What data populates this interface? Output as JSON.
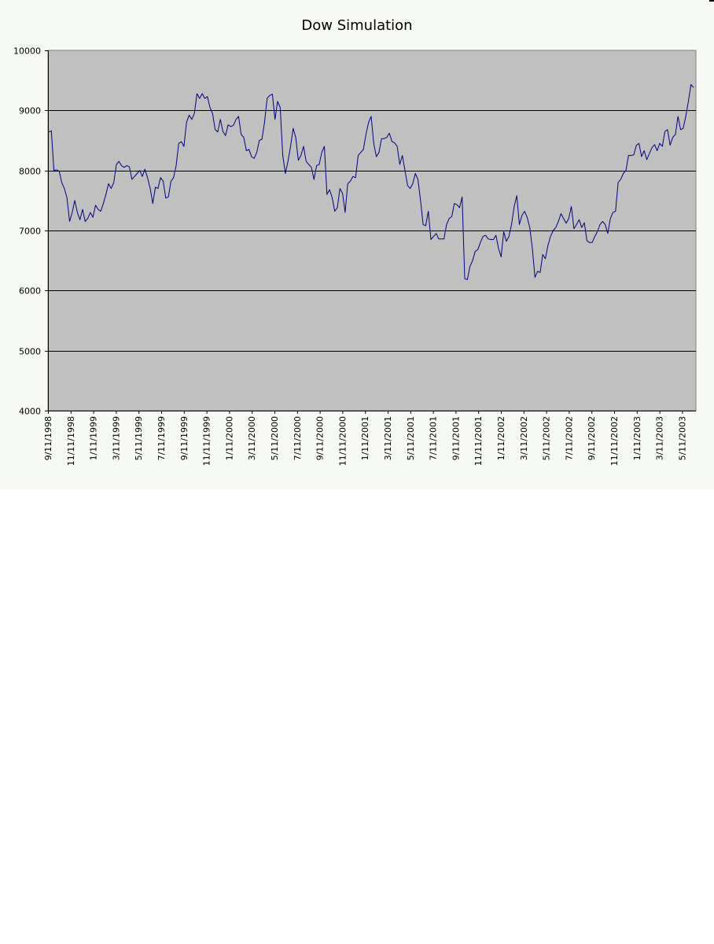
{
  "chart_data": {
    "type": "line",
    "title": "Dow Simulation",
    "xlabel": "",
    "ylabel": "",
    "ylim": [
      4000,
      10000
    ],
    "yticks": [
      "4000",
      "5000",
      "6000",
      "7000",
      "8000",
      "9000",
      "10000"
    ],
    "xticks": [
      "9/11/1998",
      "11/11/1998",
      "1/11/1999",
      "3/11/1999",
      "5/11/1999",
      "7/11/1999",
      "9/11/1999",
      "11/11/1999",
      "1/11/2000",
      "3/11/2000",
      "5/11/2000",
      "7/11/2000",
      "9/11/2000",
      "11/11/2000",
      "1/11/2001",
      "3/11/2001",
      "5/11/2001",
      "7/11/2001",
      "9/11/2001",
      "11/11/2001",
      "1/11/2002",
      "3/11/2002",
      "5/11/2002",
      "7/11/2002",
      "9/11/2002",
      "11/11/2002",
      "1/11/2003",
      "3/11/2003",
      "5/11/2003"
    ],
    "grid": true,
    "legend": "none",
    "colors": {
      "line": "#000080",
      "plot_background": "#c0c0c0",
      "chart_background": "#f6f9f4",
      "gridline": "#000000"
    },
    "series": [
      {
        "values": [
          8640,
          8660,
          8000,
          8010,
          7990,
          7800,
          7700,
          7550,
          7150,
          7300,
          7500,
          7300,
          7180,
          7350,
          7150,
          7200,
          7300,
          7220,
          7420,
          7350,
          7320,
          7450,
          7600,
          7780,
          7700,
          7800,
          8100,
          8150,
          8080,
          8050,
          8080,
          8060,
          7850,
          7900,
          7950,
          8000,
          7900,
          8020,
          7880,
          7700,
          7450,
          7720,
          7700,
          7880,
          7820,
          7540,
          7560,
          7820,
          7880,
          8080,
          8450,
          8480,
          8400,
          8800,
          8920,
          8850,
          8950,
          9280,
          9200,
          9280,
          9200,
          9230,
          9050,
          8950,
          8680,
          8640,
          8850,
          8650,
          8580,
          8760,
          8730,
          8750,
          8850,
          8900,
          8600,
          8550,
          8330,
          8350,
          8230,
          8200,
          8300,
          8500,
          8520,
          8800,
          9200,
          9250,
          9270,
          8850,
          9150,
          9050,
          8250,
          7950,
          8150,
          8400,
          8700,
          8550,
          8170,
          8250,
          8400,
          8150,
          8100,
          8050,
          7850,
          8080,
          8100,
          8300,
          8400,
          7600,
          7680,
          7550,
          7320,
          7380,
          7700,
          7620,
          7300,
          7780,
          7820,
          7900,
          7880,
          8250,
          8300,
          8350,
          8600,
          8800,
          8900,
          8450,
          8230,
          8300,
          8530,
          8530,
          8550,
          8620,
          8480,
          8460,
          8400,
          8100,
          8250,
          8000,
          7750,
          7700,
          7780,
          7950,
          7850,
          7500,
          7100,
          7080,
          7320,
          6850,
          6900,
          6950,
          6860,
          6860,
          6860,
          7100,
          7200,
          7230,
          7450,
          7430,
          7380,
          7560,
          6200,
          6180,
          6400,
          6500,
          6650,
          6680,
          6800,
          6900,
          6920,
          6860,
          6850,
          6850,
          6920,
          6700,
          6560,
          6980,
          6820,
          6900,
          7100,
          7400,
          7580,
          7100,
          7250,
          7320,
          7220,
          7050,
          6700,
          6220,
          6320,
          6300,
          6600,
          6530,
          6750,
          6900,
          7000,
          7050,
          7150,
          7280,
          7200,
          7120,
          7200,
          7400,
          7030,
          7100,
          7180,
          7050,
          7130,
          6830,
          6800,
          6800,
          6900,
          6980,
          7100,
          7150,
          7100,
          6950,
          7200,
          7300,
          7320,
          7800,
          7850,
          7950,
          8000,
          8250,
          8250,
          8260,
          8420,
          8450,
          8230,
          8330,
          8180,
          8280,
          8380,
          8430,
          8330,
          8450,
          8400,
          8650,
          8680,
          8420,
          8550,
          8600,
          8900,
          8680,
          8700,
          8900,
          9150,
          9430,
          9380
        ]
      }
    ]
  }
}
